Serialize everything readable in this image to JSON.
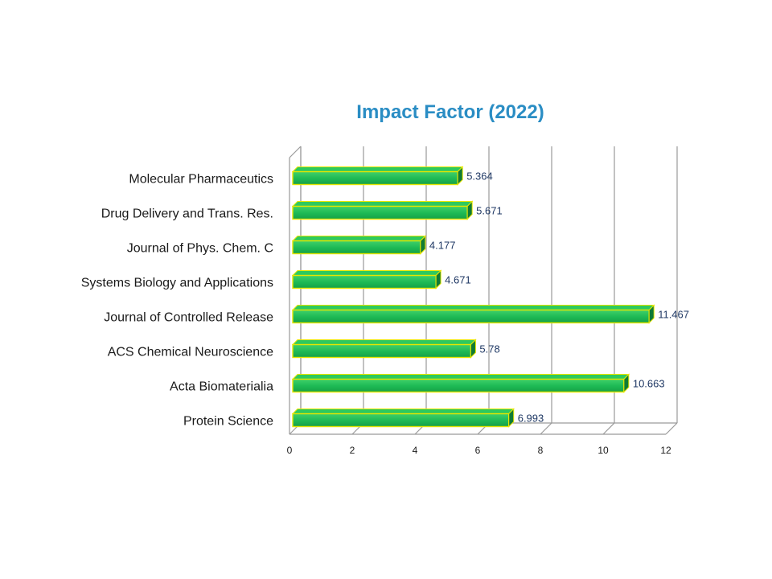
{
  "chart_data": {
    "type": "bar",
    "orientation": "horizontal",
    "title": "Impact Factor (2022)",
    "categories": [
      "Molecular Pharmaceutics",
      "Drug Delivery and Trans. Res.",
      "Journal of Phys. Chem. C",
      "Systems Biology and Applications",
      "Journal of Controlled Release",
      "ACS Chemical Neuroscience",
      "Acta Biomaterialia",
      "Protein Science"
    ],
    "values": [
      5.364,
      5.671,
      4.177,
      4.671,
      11.467,
      5.78,
      10.663,
      6.993
    ],
    "value_labels": [
      "5.364",
      "5.671",
      "4.177",
      "4.671",
      "11.467",
      "5.78",
      "10.663",
      "6.993"
    ],
    "xlim": [
      0,
      12
    ],
    "xticks": [
      "0",
      "2",
      "4",
      "6",
      "8",
      "10",
      "12"
    ],
    "grid": true,
    "bar_color": "#1db954",
    "bar_edge_color": "#e6e600",
    "title_color": "#2a8dc4",
    "value_label_color": "#1f3864"
  }
}
